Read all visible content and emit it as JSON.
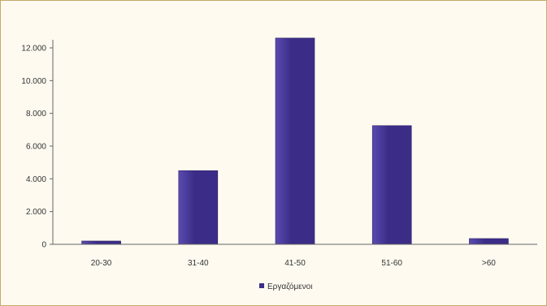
{
  "chart_data": {
    "type": "bar",
    "categories": [
      "20-30",
      "31-40",
      "41-50",
      "51-60",
      ">60"
    ],
    "series": [
      {
        "name": "Εργαζόμενοι",
        "values": [
          200,
          4500,
          12600,
          7250,
          350
        ]
      }
    ],
    "ylim": [
      0,
      12000
    ],
    "yticks": [
      0,
      2000,
      4000,
      6000,
      8000,
      10000,
      12000
    ],
    "ytick_labels": [
      "0",
      "2.000",
      "4.000",
      "6.000",
      "8.000",
      "10.000",
      "12.000"
    ],
    "grid": false,
    "legend": "bottom-center",
    "colors": {
      "bar": "#3b2d87",
      "bar_light": "#5a4bb0",
      "axis": "#666666"
    }
  }
}
